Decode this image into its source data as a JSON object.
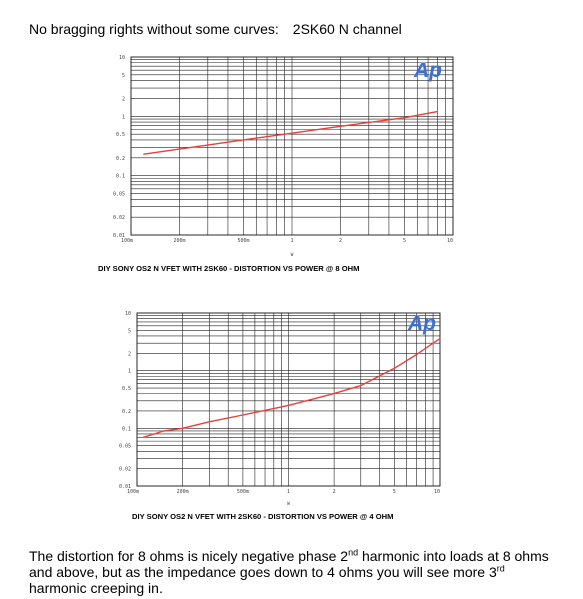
{
  "heading": {
    "lead": "No bragging rights without some curves:",
    "part": "2SK60 N channel"
  },
  "body": {
    "t1": "The distortion for 8 ohms is nicely negative phase 2",
    "sup1": "nd",
    "t2": " harmonic into loads at 8 ohms and above, but as the impedance goes down to 4 ohms you will see more 3",
    "sup2": "rd",
    "t3": " harmonic creeping in."
  },
  "colors": {
    "curve": "#e8403a",
    "logo": "#3b6fd6",
    "grid": "#222222"
  },
  "chart_data": [
    {
      "type": "line",
      "logo": "Ap",
      "caption": "DIY SONY OS2 N VFET WITH 2SK60 - DISTORTION VS POWER @ 8 OHM",
      "xunit": "W",
      "xscale": "log",
      "yscale": "log",
      "xlim": [
        0.1,
        10
      ],
      "ylim": [
        0.01,
        10
      ],
      "xticks": [
        {
          "v": 0.1,
          "label": "100m"
        },
        {
          "v": 0.2,
          "label": "200m"
        },
        {
          "v": 0.5,
          "label": "500m"
        },
        {
          "v": 1,
          "label": "1"
        },
        {
          "v": 2,
          "label": "2"
        },
        {
          "v": 5,
          "label": "5"
        },
        {
          "v": 10,
          "label": "10"
        }
      ],
      "yticks": [
        {
          "v": 10,
          "label": "10"
        },
        {
          "v": 5,
          "label": "5"
        },
        {
          "v": 2,
          "label": "2"
        },
        {
          "v": 1,
          "label": "1"
        },
        {
          "v": 0.5,
          "label": "0.5"
        },
        {
          "v": 0.2,
          "label": "0.2"
        },
        {
          "v": 0.1,
          "label": "0.1"
        },
        {
          "v": 0.05,
          "label": "0.05"
        },
        {
          "v": 0.02,
          "label": "0.02"
        },
        {
          "v": 0.01,
          "label": "0.01"
        }
      ],
      "series": [
        {
          "x": [
            0.12,
            0.2,
            0.5,
            1,
            2,
            5,
            8
          ],
          "y": [
            0.23,
            0.28,
            0.4,
            0.52,
            0.68,
            0.95,
            1.2
          ]
        }
      ],
      "grid": true
    },
    {
      "type": "line",
      "logo": "Ap",
      "caption": "DIY SONY OS2 N VFET WITH 2SK60 - DISTORTION VS POWER @ 4 OHM",
      "xunit": "W",
      "xscale": "log",
      "yscale": "log",
      "xlim": [
        0.1,
        10
      ],
      "ylim": [
        0.01,
        10
      ],
      "xticks": [
        {
          "v": 0.1,
          "label": "100m"
        },
        {
          "v": 0.2,
          "label": "200m"
        },
        {
          "v": 0.5,
          "label": "500m"
        },
        {
          "v": 1,
          "label": "1"
        },
        {
          "v": 2,
          "label": "2"
        },
        {
          "v": 5,
          "label": "5"
        },
        {
          "v": 10,
          "label": "10"
        }
      ],
      "yticks": [
        {
          "v": 10,
          "label": "10"
        },
        {
          "v": 5,
          "label": "5"
        },
        {
          "v": 2,
          "label": "2"
        },
        {
          "v": 1,
          "label": "1"
        },
        {
          "v": 0.5,
          "label": "0.5"
        },
        {
          "v": 0.2,
          "label": "0.2"
        },
        {
          "v": 0.1,
          "label": "0.1"
        },
        {
          "v": 0.05,
          "label": "0.05"
        },
        {
          "v": 0.02,
          "label": "0.02"
        },
        {
          "v": 0.01,
          "label": "0.01"
        }
      ],
      "series": [
        {
          "x": [
            0.11,
            0.15,
            0.2,
            0.3,
            0.5,
            1,
            2,
            3,
            5,
            7,
            10
          ],
          "y": [
            0.07,
            0.09,
            0.1,
            0.13,
            0.17,
            0.25,
            0.4,
            0.55,
            1.1,
            1.9,
            3.6
          ]
        }
      ],
      "grid": true
    }
  ]
}
